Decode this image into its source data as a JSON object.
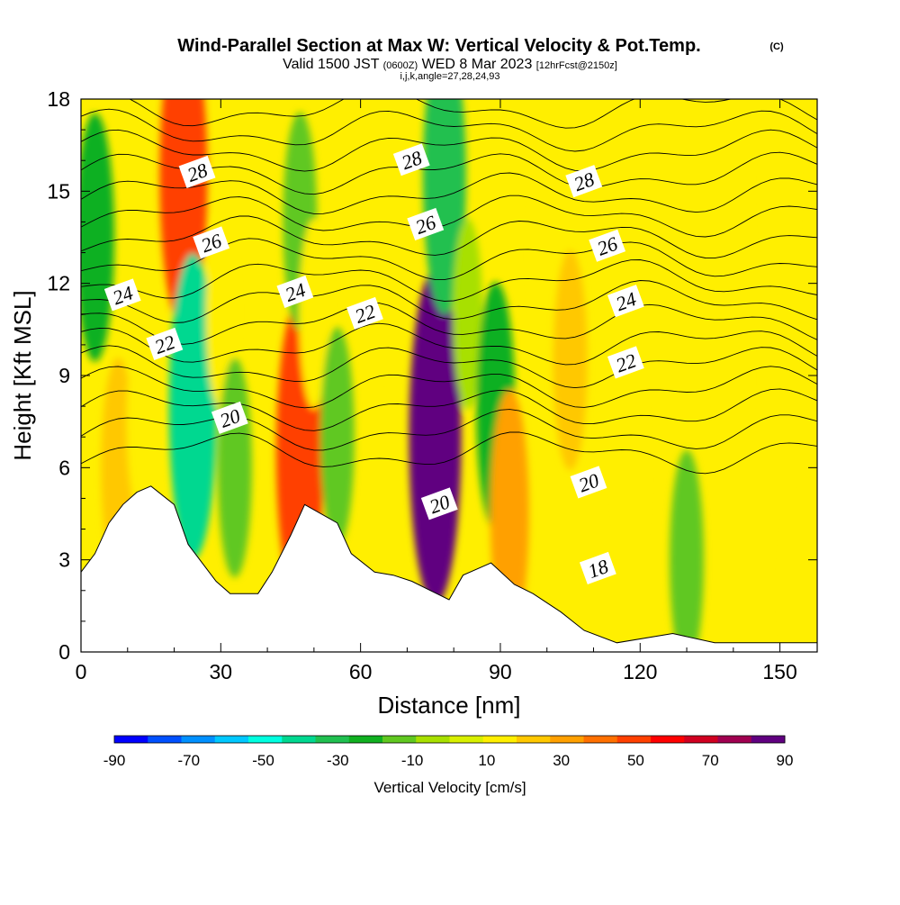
{
  "chart_data": {
    "type": "heatmap",
    "title": "Wind-Parallel Section at Max W: Vertical Velocity & Pot.Temp.",
    "copyright": "(C)",
    "subtitle_parts": {
      "valid": "Valid 1500 JST",
      "utc": "(0600Z)",
      "date": "WED 8 Mar 2023",
      "fcst": "[12hrFcst@2150z]"
    },
    "indices": "i,j,k,angle=27,28,24,93",
    "xlabel": "Distance [nm]",
    "ylabel": "Height [Kft MSL]",
    "xlim": [
      0,
      158
    ],
    "ylim": [
      0,
      18
    ],
    "xticks": [
      0,
      30,
      60,
      90,
      120,
      150
    ],
    "xtick_labels": [
      "0",
      "30",
      "60",
      "90",
      "120",
      "150"
    ],
    "yticks": [
      0,
      3,
      6,
      9,
      12,
      15,
      18
    ],
    "ytick_labels": [
      "0",
      "3",
      "6",
      "9",
      "12",
      "15",
      "18"
    ],
    "colorbar": {
      "label": "Vertical Velocity [cm/s]",
      "ticks": [
        -90,
        -70,
        -50,
        -30,
        -10,
        10,
        30,
        50,
        70,
        90
      ],
      "tick_labels": [
        "-90",
        "-70",
        "-50",
        "-30",
        "-10",
        "10",
        "30",
        "50",
        "70",
        "90"
      ],
      "colors": [
        "#0000ff",
        "#0050ff",
        "#0090ff",
        "#00c8ff",
        "#00ffe0",
        "#00d890",
        "#20c050",
        "#10b020",
        "#60c820",
        "#a8e000",
        "#d8f000",
        "#ffef00",
        "#ffc800",
        "#ffa000",
        "#ff7000",
        "#ff4000",
        "#ff0000",
        "#d00020",
        "#a00050",
        "#600080"
      ]
    },
    "terrain_kft": [
      [
        0,
        2.6
      ],
      [
        3,
        3.2
      ],
      [
        6,
        4.2
      ],
      [
        9,
        4.8
      ],
      [
        12,
        5.2
      ],
      [
        15,
        5.4
      ],
      [
        20,
        4.8
      ],
      [
        23,
        3.5
      ],
      [
        26,
        2.9
      ],
      [
        29,
        2.3
      ],
      [
        32,
        1.9
      ],
      [
        38,
        1.9
      ],
      [
        41,
        2.6
      ],
      [
        45,
        3.8
      ],
      [
        48,
        4.8
      ],
      [
        55,
        4.2
      ],
      [
        58,
        3.2
      ],
      [
        63,
        2.6
      ],
      [
        67,
        2.5
      ],
      [
        71,
        2.3
      ],
      [
        75,
        2.0
      ],
      [
        79,
        1.7
      ],
      [
        82,
        2.5
      ],
      [
        88,
        2.9
      ],
      [
        93,
        2.2
      ],
      [
        97,
        1.9
      ],
      [
        103,
        1.3
      ],
      [
        108,
        0.7
      ],
      [
        115,
        0.3
      ],
      [
        127,
        0.6
      ],
      [
        136,
        0.3
      ],
      [
        151,
        0.3
      ]
    ],
    "w_cells": [
      {
        "x": 3,
        "y": 13.5,
        "w": -30
      },
      {
        "x": 8,
        "y": 6.0,
        "w": 20
      },
      {
        "x": 13,
        "y": 7.5,
        "w": 10
      },
      {
        "x": 22,
        "y": 15.5,
        "w": 50
      },
      {
        "x": 24,
        "y": 8.0,
        "w": -50
      },
      {
        "x": 30,
        "y": 11.0,
        "w": 10
      },
      {
        "x": 33,
        "y": 6.0,
        "w": -20
      },
      {
        "x": 47,
        "y": 6.5,
        "w": 50
      },
      {
        "x": 47,
        "y": 14.0,
        "w": -20
      },
      {
        "x": 50,
        "y": 11.0,
        "w": 10
      },
      {
        "x": 55,
        "y": 7.0,
        "w": -20
      },
      {
        "x": 65,
        "y": 12.0,
        "w": 10
      },
      {
        "x": 76,
        "y": 7.0,
        "w": 90
      },
      {
        "x": 78,
        "y": 15.5,
        "w": -40
      },
      {
        "x": 83,
        "y": 11.0,
        "w": -10
      },
      {
        "x": 89,
        "y": 8.0,
        "w": -30
      },
      {
        "x": 92,
        "y": 4.5,
        "w": 30
      },
      {
        "x": 100,
        "y": 13.0,
        "w": 10
      },
      {
        "x": 105,
        "y": 9.5,
        "w": 20
      },
      {
        "x": 118,
        "y": 6.0,
        "w": 10
      },
      {
        "x": 130,
        "y": 3.0,
        "w": -20
      },
      {
        "x": 140,
        "y": 9.0,
        "w": 10
      },
      {
        "x": 150,
        "y": 15.0,
        "w": 10
      },
      {
        "x": 154,
        "y": 2.0,
        "w": 10
      }
    ],
    "theta_contour_labels": [
      {
        "value": "28",
        "x": 25,
        "y": 15.6
      },
      {
        "value": "26",
        "x": 28,
        "y": 13.3
      },
      {
        "value": "24",
        "x": 9,
        "y": 11.6
      },
      {
        "value": "22",
        "x": 18,
        "y": 10.0
      },
      {
        "value": "20",
        "x": 32,
        "y": 7.6
      },
      {
        "value": "24",
        "x": 46,
        "y": 11.7
      },
      {
        "value": "22",
        "x": 61,
        "y": 11.0
      },
      {
        "value": "28",
        "x": 71,
        "y": 16.0
      },
      {
        "value": "26",
        "x": 74,
        "y": 13.9
      },
      {
        "value": "20",
        "x": 77,
        "y": 4.8
      },
      {
        "value": "28",
        "x": 108,
        "y": 15.3
      },
      {
        "value": "26",
        "x": 113,
        "y": 13.2
      },
      {
        "value": "24",
        "x": 117,
        "y": 11.4
      },
      {
        "value": "22",
        "x": 117,
        "y": 9.4
      },
      {
        "value": "20",
        "x": 109,
        "y": 5.5
      },
      {
        "value": "18",
        "x": 111,
        "y": 2.7
      }
    ]
  }
}
